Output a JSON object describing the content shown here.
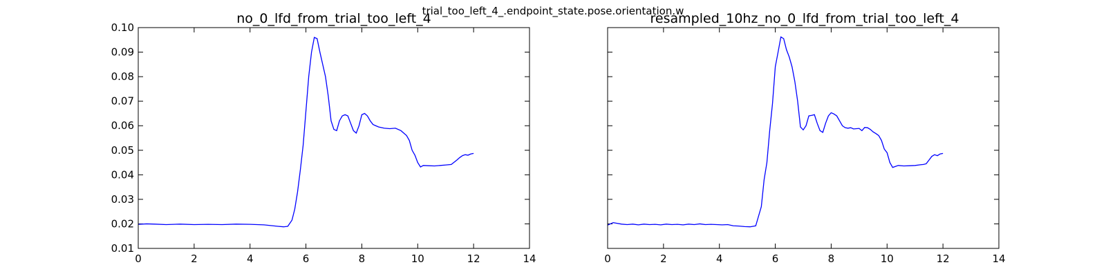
{
  "figure": {
    "suptitle": "trial_too_left_4_.endpoint_state.pose.orientation.w"
  },
  "colors": {
    "line": "#0000ff",
    "axes": "#000000",
    "background": "#ffffff"
  },
  "chart_data": [
    {
      "type": "line",
      "title": "no_0_lfd_from_trial_too_left_4",
      "xlim": [
        0,
        14
      ],
      "ylim": [
        0.01,
        0.1
      ],
      "xticks": [
        0,
        2,
        4,
        6,
        8,
        10,
        12,
        14
      ],
      "yticks": [
        0.01,
        0.02,
        0.03,
        0.04,
        0.05,
        0.06,
        0.07,
        0.08,
        0.09,
        0.1
      ],
      "ytick_labels": [
        "0.01",
        "0.02",
        "0.03",
        "0.04",
        "0.05",
        "0.06",
        "0.07",
        "0.08",
        "0.09",
        "0.10"
      ],
      "show_yticklabels": true,
      "grid": false,
      "series": [
        {
          "x": [
            0,
            0.3,
            0.6,
            1.0,
            1.5,
            2.0,
            2.5,
            3.0,
            3.5,
            4.0,
            4.5,
            5.0,
            5.2,
            5.35,
            5.5,
            5.6,
            5.7,
            5.8,
            5.9,
            6.0,
            6.1,
            6.2,
            6.3,
            6.4,
            6.5,
            6.6,
            6.7,
            6.8,
            6.9,
            7.0,
            7.1,
            7.2,
            7.3,
            7.4,
            7.5,
            7.6,
            7.7,
            7.8,
            7.9,
            8.0,
            8.1,
            8.2,
            8.3,
            8.4,
            8.5,
            8.6,
            8.8,
            9.0,
            9.2,
            9.4,
            9.5,
            9.6,
            9.7,
            9.8,
            9.9,
            10.0,
            10.1,
            10.2,
            10.4,
            10.6,
            10.8,
            11.0,
            11.2,
            11.4,
            11.5,
            11.6,
            11.7,
            11.8,
            11.9,
            12.0
          ],
          "y": [
            0.0198,
            0.02,
            0.0199,
            0.0197,
            0.0199,
            0.0197,
            0.0198,
            0.0197,
            0.0199,
            0.0198,
            0.0196,
            0.019,
            0.0188,
            0.019,
            0.0215,
            0.026,
            0.033,
            0.042,
            0.052,
            0.066,
            0.08,
            0.09,
            0.096,
            0.0955,
            0.09,
            0.085,
            0.08,
            0.072,
            0.062,
            0.0585,
            0.058,
            0.062,
            0.064,
            0.0645,
            0.064,
            0.061,
            0.058,
            0.057,
            0.06,
            0.0645,
            0.065,
            0.064,
            0.062,
            0.0605,
            0.06,
            0.0595,
            0.059,
            0.0588,
            0.059,
            0.058,
            0.057,
            0.056,
            0.054,
            0.05,
            0.048,
            0.045,
            0.0432,
            0.0438,
            0.0437,
            0.0436,
            0.0438,
            0.044,
            0.0442,
            0.046,
            0.047,
            0.0478,
            0.0482,
            0.048,
            0.0485,
            0.0487
          ]
        }
      ]
    },
    {
      "type": "line",
      "title": "resampled_10hz_no_0_lfd_from_trial_too_left_4",
      "xlim": [
        0,
        14
      ],
      "ylim": [
        0.01,
        0.1
      ],
      "xticks": [
        0,
        2,
        4,
        6,
        8,
        10,
        12,
        14
      ],
      "yticks": [
        0.01,
        0.02,
        0.03,
        0.04,
        0.05,
        0.06,
        0.07,
        0.08,
        0.09,
        0.1
      ],
      "show_yticklabels": false,
      "grid": false,
      "series": [
        {
          "x": [
            0,
            0.1,
            0.2,
            0.3,
            0.5,
            0.7,
            0.9,
            1.1,
            1.3,
            1.5,
            1.7,
            1.9,
            2.1,
            2.3,
            2.5,
            2.7,
            2.9,
            3.1,
            3.3,
            3.5,
            3.7,
            3.9,
            4.1,
            4.3,
            4.5,
            4.7,
            4.9,
            5.1,
            5.3,
            5.5,
            5.6,
            5.7,
            5.8,
            5.9,
            6.0,
            6.1,
            6.2,
            6.3,
            6.4,
            6.5,
            6.6,
            6.7,
            6.8,
            6.9,
            7.0,
            7.1,
            7.2,
            7.3,
            7.4,
            7.5,
            7.6,
            7.7,
            7.8,
            7.9,
            8.0,
            8.1,
            8.2,
            8.3,
            8.4,
            8.5,
            8.6,
            8.7,
            8.8,
            8.9,
            9.0,
            9.1,
            9.2,
            9.3,
            9.4,
            9.5,
            9.6,
            9.7,
            9.8,
            9.9,
            10.0,
            10.1,
            10.2,
            10.4,
            10.6,
            10.8,
            11.0,
            11.2,
            11.3,
            11.4,
            11.5,
            11.6,
            11.7,
            11.8,
            11.9,
            12.0
          ],
          "y": [
            0.0195,
            0.02,
            0.0205,
            0.0203,
            0.0199,
            0.0197,
            0.0199,
            0.0196,
            0.0199,
            0.0197,
            0.0198,
            0.0196,
            0.0199,
            0.0197,
            0.0198,
            0.0196,
            0.0199,
            0.0197,
            0.02,
            0.0197,
            0.0198,
            0.0197,
            0.0196,
            0.0197,
            0.0192,
            0.0191,
            0.0189,
            0.0188,
            0.0192,
            0.027,
            0.038,
            0.045,
            0.058,
            0.069,
            0.084,
            0.09,
            0.0962,
            0.0955,
            0.091,
            0.088,
            0.084,
            0.078,
            0.07,
            0.0595,
            0.0583,
            0.06,
            0.064,
            0.0642,
            0.0645,
            0.061,
            0.058,
            0.0573,
            0.061,
            0.064,
            0.0653,
            0.0648,
            0.064,
            0.062,
            0.06,
            0.0592,
            0.059,
            0.0592,
            0.0587,
            0.0588,
            0.0589,
            0.058,
            0.0593,
            0.0592,
            0.0585,
            0.0575,
            0.0568,
            0.056,
            0.054,
            0.0505,
            0.049,
            0.045,
            0.043,
            0.0438,
            0.0436,
            0.0437,
            0.0438,
            0.0441,
            0.0442,
            0.0445,
            0.046,
            0.0475,
            0.0482,
            0.0478,
            0.0485,
            0.0487
          ]
        }
      ]
    }
  ]
}
